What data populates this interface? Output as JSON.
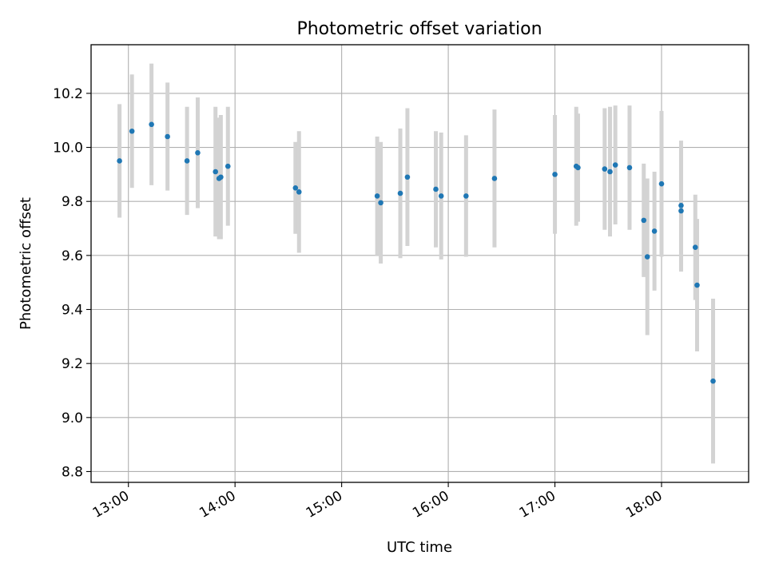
{
  "colors": {
    "point": "#1f77b4",
    "errorbar": "#d3d3d3",
    "grid": "#b0b0b0",
    "axes": "#000000"
  },
  "chart_data": {
    "type": "scatter",
    "title": "Photometric offset variation",
    "xlabel": "UTC time",
    "ylabel": "Photometric offset",
    "x_is_time": true,
    "xlim": [
      "12:39",
      "18:49"
    ],
    "ylim": [
      8.76,
      10.38
    ],
    "grid": true,
    "x_ticks": [
      "13:00",
      "14:00",
      "15:00",
      "16:00",
      "17:00",
      "18:00"
    ],
    "y_ticks": [
      8.8,
      9.0,
      9.2,
      9.4,
      9.6,
      9.8,
      10.0,
      10.2
    ],
    "y_tick_labels": [
      "8.8",
      "9.0",
      "9.2",
      "9.4",
      "9.6",
      "9.8",
      "10.0",
      "10.2"
    ],
    "series": [
      {
        "points": [
          {
            "time": "12:55",
            "y": 9.95,
            "err": 0.21
          },
          {
            "time": "13:02",
            "y": 10.06,
            "err": 0.21
          },
          {
            "time": "13:13",
            "y": 10.085,
            "err": 0.225
          },
          {
            "time": "13:22",
            "y": 10.04,
            "err": 0.2
          },
          {
            "time": "13:33",
            "y": 9.95,
            "err": 0.2
          },
          {
            "time": "13:39",
            "y": 9.98,
            "err": 0.205
          },
          {
            "time": "13:49",
            "y": 9.91,
            "err": 0.24
          },
          {
            "time": "13:51",
            "y": 9.885,
            "err": 0.225
          },
          {
            "time": "13:52",
            "y": 9.89,
            "err": 0.23
          },
          {
            "time": "13:56",
            "y": 9.93,
            "err": 0.22
          },
          {
            "time": "14:34",
            "y": 9.85,
            "err": 0.17
          },
          {
            "time": "14:36",
            "y": 9.835,
            "err": 0.225
          },
          {
            "time": "15:20",
            "y": 9.82,
            "err": 0.22
          },
          {
            "time": "15:22",
            "y": 9.795,
            "err": 0.225
          },
          {
            "time": "15:33",
            "y": 9.83,
            "err": 0.24
          },
          {
            "time": "15:37",
            "y": 9.89,
            "err": 0.255
          },
          {
            "time": "15:53",
            "y": 9.845,
            "err": 0.215
          },
          {
            "time": "15:56",
            "y": 9.82,
            "err": 0.235
          },
          {
            "time": "16:10",
            "y": 9.82,
            "err": 0.225
          },
          {
            "time": "16:26",
            "y": 9.885,
            "err": 0.255
          },
          {
            "time": "17:00",
            "y": 9.9,
            "err": 0.22
          },
          {
            "time": "17:12",
            "y": 9.93,
            "err": 0.22
          },
          {
            "time": "17:13",
            "y": 9.925,
            "err": 0.2
          },
          {
            "time": "17:28",
            "y": 9.92,
            "err": 0.225
          },
          {
            "time": "17:31",
            "y": 9.91,
            "err": 0.24
          },
          {
            "time": "17:34",
            "y": 9.935,
            "err": 0.22
          },
          {
            "time": "17:42",
            "y": 9.925,
            "err": 0.23
          },
          {
            "time": "17:50",
            "y": 9.73,
            "err": 0.21
          },
          {
            "time": "17:52",
            "y": 9.595,
            "err": 0.29
          },
          {
            "time": "17:56",
            "y": 9.69,
            "err": 0.22
          },
          {
            "time": "18:00",
            "y": 9.865,
            "err": 0.27
          },
          {
            "time": "18:11",
            "y": 9.785,
            "err": 0.24
          },
          {
            "time": "18:11",
            "y": 9.765,
            "err": 0.225
          },
          {
            "time": "18:19",
            "y": 9.63,
            "err": 0.195
          },
          {
            "time": "18:20",
            "y": 9.49,
            "err": 0.245
          },
          {
            "time": "18:29",
            "y": 9.135,
            "err": 0.305
          }
        ]
      }
    ]
  }
}
